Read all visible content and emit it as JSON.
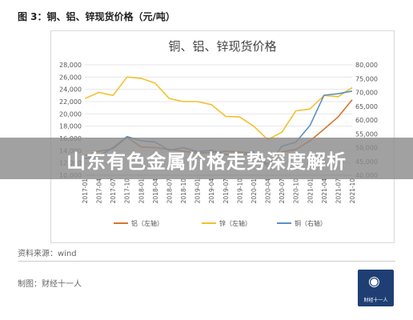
{
  "figure_title": "图 3：铜、铝、锌现货价格（元/吨）",
  "source": "资料来源：wind",
  "maker": "制图：财经十一人",
  "banner_text": "山东有色金属价格走势深度解析",
  "logo": {
    "icon": "globe-icon",
    "text": "财经十一人",
    "color": "#1f3f74"
  },
  "chart_data": {
    "type": "line",
    "title": "铜、铝、锌现货价格",
    "x": [
      "2017-01",
      "2017-04",
      "2017-07",
      "2017-10",
      "2018-01",
      "2018-04",
      "2018-07",
      "2018-10",
      "2019-01",
      "2019-04",
      "2019-07",
      "2019-10",
      "2020-01",
      "2020-04",
      "2020-07",
      "2020-10",
      "2021-01",
      "2021-04",
      "2021-07",
      "2021-10"
    ],
    "left_axis": {
      "min": 10000,
      "max": 28000,
      "ticks": [
        10000,
        12000,
        14000,
        16000,
        18000,
        20000,
        22000,
        24000,
        26000,
        28000
      ]
    },
    "right_axis": {
      "min": 40000,
      "max": 80000,
      "ticks": [
        40000,
        45000,
        50000,
        55000,
        60000,
        65000,
        70000,
        75000,
        80000
      ]
    },
    "series": [
      {
        "name": "铝（左轴）",
        "axis": "left",
        "color": "#d9742c",
        "values": [
          13200,
          13900,
          14300,
          16200,
          14600,
          14500,
          14200,
          13900,
          13600,
          13700,
          13900,
          13800,
          13600,
          11800,
          13800,
          14200,
          15600,
          17500,
          19500,
          22300
        ]
      },
      {
        "name": "锌（左轴）",
        "axis": "left",
        "color": "#f2c12e",
        "values": [
          22500,
          23500,
          23000,
          26000,
          25800,
          25000,
          22500,
          22000,
          22000,
          21500,
          19600,
          19500,
          18000,
          15800,
          17000,
          20500,
          20800,
          23000,
          22800,
          24300
        ]
      },
      {
        "name": "铜（右轴）",
        "axis": "right",
        "color": "#5b8fc7",
        "values": [
          46000,
          47000,
          50000,
          54000,
          52500,
          52000,
          49000,
          50000,
          48500,
          49000,
          47500,
          47000,
          48500,
          43000,
          50500,
          52000,
          58000,
          69000,
          69500,
          70500
        ]
      }
    ],
    "grid": true,
    "legend": "bottom"
  }
}
